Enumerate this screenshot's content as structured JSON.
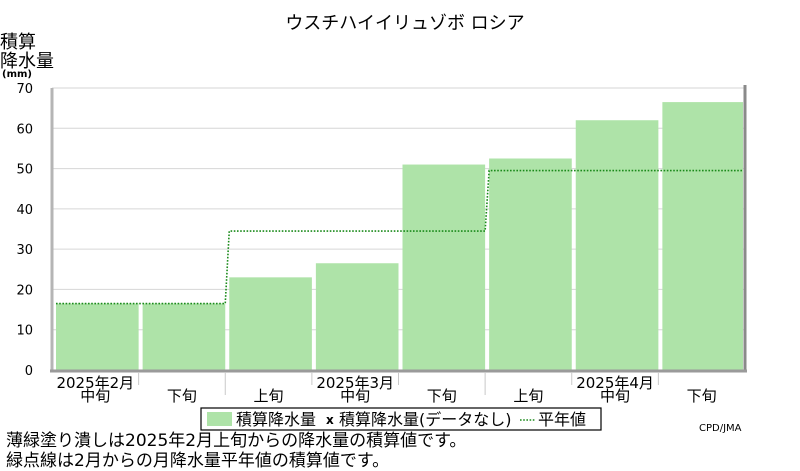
{
  "chart_data": {
    "type": "area",
    "title": "ウスチハイイリュゾボ ロシア",
    "ylabel_lines": [
      "積算",
      "降水量",
      "(mm)"
    ],
    "ylim": [
      0,
      70
    ],
    "yticks": [
      0,
      10,
      20,
      30,
      40,
      50,
      60,
      70
    ],
    "periods": [
      {
        "label": "中旬",
        "month": "2025年2月"
      },
      {
        "label": "下旬",
        "month": ""
      },
      {
        "label": "上旬",
        "month": ""
      },
      {
        "label": "中旬",
        "month": "2025年3月"
      },
      {
        "label": "下旬",
        "month": ""
      },
      {
        "label": "上旬",
        "month": ""
      },
      {
        "label": "中旬",
        "month": "2025年4月"
      },
      {
        "label": "下旬",
        "month": ""
      }
    ],
    "series": [
      {
        "name": "積算降水量",
        "values": [
          16.5,
          16.5,
          23,
          26.5,
          51,
          52.5,
          62,
          66.5
        ],
        "color": "#aee3a8"
      },
      {
        "name": "積算降水量(データなし)",
        "values": [],
        "marker": "x"
      },
      {
        "name": "平年値",
        "values": [
          16.5,
          16.5,
          34.5,
          34.5,
          34.5,
          49.5,
          49.5,
          49.5
        ],
        "color": "#1a8a1a",
        "style": "dotted"
      }
    ],
    "legend_placement": "bottom",
    "source": "CPD/JMA"
  },
  "footnotes": [
    "薄緑塗り潰しは2025年2月上旬からの降水量の積算値です。",
    "緑点線は2月からの月降水量平年値の積算値です。"
  ]
}
